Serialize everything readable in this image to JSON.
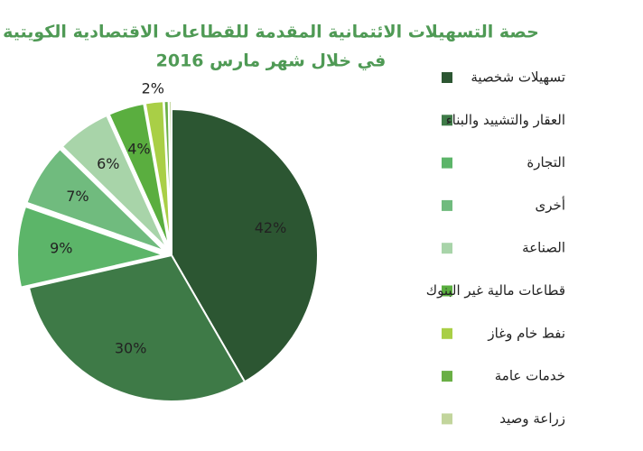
{
  "chart_data": {
    "type": "pie",
    "title": "حصة التسهيلات الائتمانية المقدمة للقطاعات الاقتصادية الكويتية",
    "subtitle": "في خلال شهر مارس 2016",
    "categories": [
      "تسهيلات شخصية",
      "العقار والتشييد والبناء",
      "التجارة",
      "أخرى",
      "الصناعة",
      "قطاعات مالية غير البنوك",
      "نفط خام وغاز",
      "خدمات عامة",
      "زراعة وصيد"
    ],
    "values": [
      42,
      30,
      9,
      7,
      6,
      4,
      2,
      0.5,
      0.3
    ],
    "value_labels": [
      "42%",
      "30%",
      "9%",
      "7%",
      "6%",
      "4%",
      "2%",
      null,
      null
    ],
    "colors": [
      "#2c5632",
      "#3e7a47",
      "#5cb569",
      "#70bb7e",
      "#a8d4a9",
      "#5aae3f",
      "#a9cf46",
      "#6aaf45",
      "#c2d59c"
    ],
    "legend": "right"
  }
}
